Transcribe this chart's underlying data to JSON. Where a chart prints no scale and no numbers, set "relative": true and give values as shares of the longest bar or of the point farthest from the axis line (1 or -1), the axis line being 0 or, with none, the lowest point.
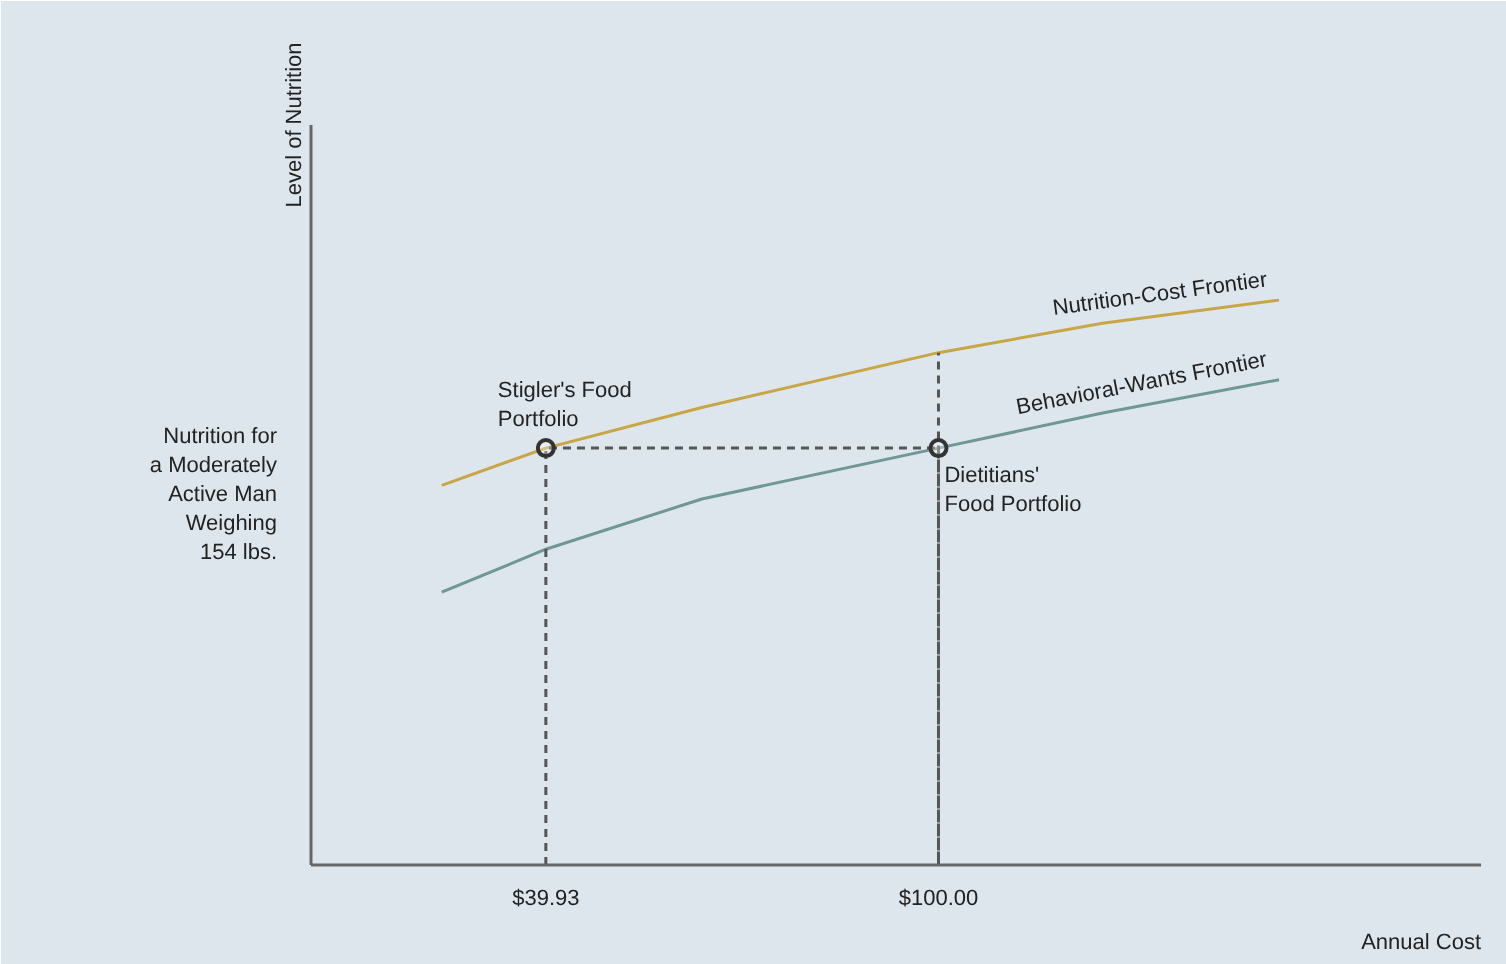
{
  "chart_data": {
    "type": "line",
    "relative": true,
    "xlabel": "Annual Cost",
    "ylabel": "Level of Nutrition",
    "xlim": [
      4,
      183
    ],
    "xticks": [
      {
        "value": 39.93,
        "label": "$39.93"
      },
      {
        "value": 100,
        "label": "$100.00"
      }
    ],
    "grid": false,
    "legend": false,
    "tick_labels": "x",
    "marker": "none",
    "line_style": "solid",
    "series": [
      {
        "name": "Nutrition-Cost Frontier",
        "color": "#c8a545",
        "x": [
          24.0,
          39.93,
          63.8,
          100,
          125.1,
          152.1
        ],
        "values": [
          0.672,
          0.738,
          0.81,
          0.907,
          0.959,
          1.0
        ]
      },
      {
        "name": "Behavioral-Wants Frontier",
        "color": "#6e9896",
        "x": [
          24.0,
          39.93,
          63.8,
          100,
          125.1,
          152.1
        ],
        "values": [
          0.483,
          0.559,
          0.648,
          0.738,
          0.8,
          0.859
        ]
      },
      {
        "color": "#555555",
        "line_style": "dashed",
        "x": [
          39.93,
          39.93,
          100,
          100,
          100
        ],
        "values": [
          0,
          0.738,
          0.738,
          0,
          0.907
        ]
      },
      {
        "type": "scatter",
        "marker": "circle",
        "color": "#333333",
        "x": [
          39.93,
          100
        ],
        "values": [
          0.738,
          0.738
        ]
      }
    ],
    "annotations": [
      "Nutrition for\na Moderately\nActive Man\nWeighing\n154 lbs.",
      {
        "text": "Stigler's Food\nPortfolio",
        "x": 39.93,
        "y": 0.738
      },
      {
        "text": "Dietitians'\nFood Portfolio",
        "x": 100,
        "y": 0.738
      }
    ]
  }
}
